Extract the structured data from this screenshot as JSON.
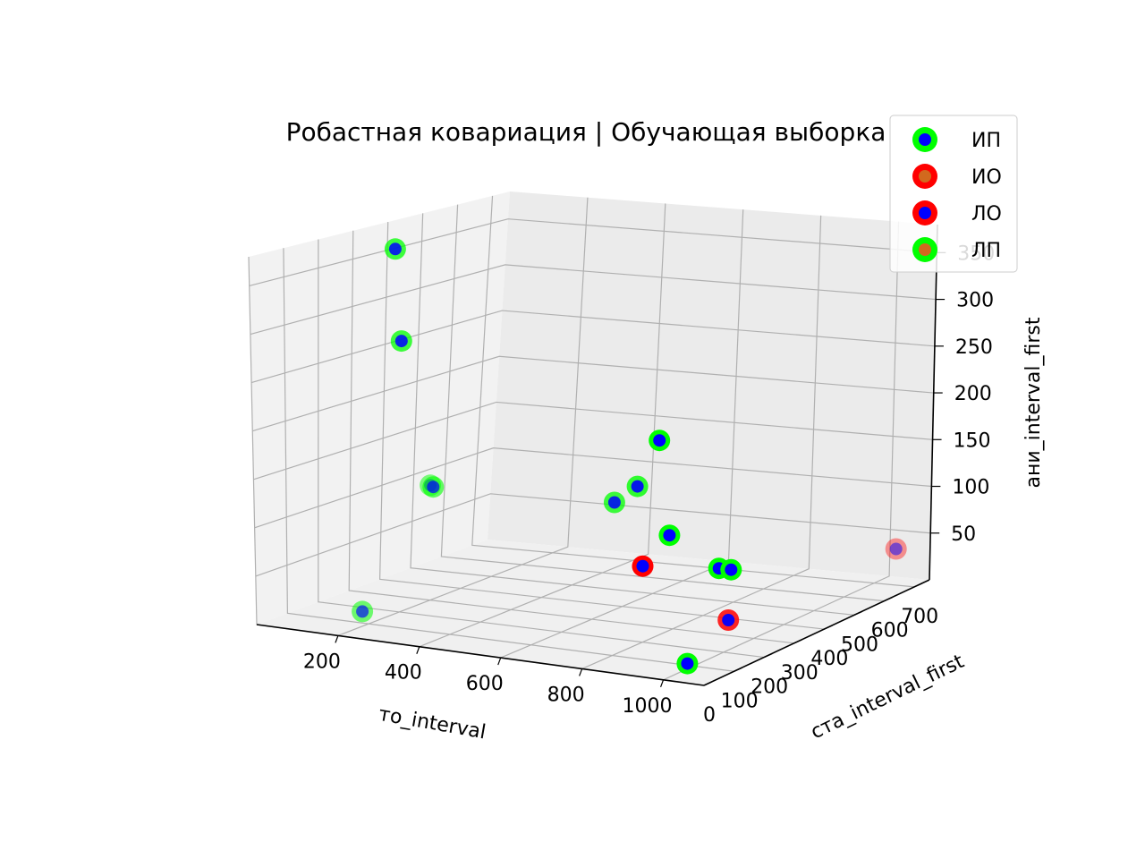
{
  "chart_data": {
    "type": "scatter",
    "projection": "3d",
    "title": "Робастная ковариация | Обучающая выборка",
    "xlabel": "то_interval",
    "ylabel": "ста_interval_first",
    "zlabel": "ани_interval_first",
    "x_ticks": [
      "200",
      "400",
      "600",
      "800",
      "1000"
    ],
    "y_ticks": [
      "0",
      "100",
      "200",
      "300",
      "400",
      "500",
      "600",
      "700"
    ],
    "z_ticks": [
      "50",
      "100",
      "150",
      "200",
      "250",
      "300",
      "350"
    ],
    "grid": true,
    "legend_position": "top-right",
    "legend": [
      {
        "label": "ИП",
        "edge": "#00ff00",
        "face": "#0000ff"
      },
      {
        "label": "ИО",
        "edge": "#ff0000",
        "face": "#d2691e"
      },
      {
        "label": "ЛО",
        "edge": "#ff0000",
        "face": "#0000ff"
      },
      {
        "label": "ЛП",
        "edge": "#00ff00",
        "face": "#d2691e"
      }
    ],
    "points": [
      {
        "class": "ИП",
        "x": 80,
        "y": 330,
        "z": 360,
        "alpha": 0.75
      },
      {
        "class": "ИП",
        "x": 140,
        "y": 280,
        "z": 270,
        "alpha": 0.75
      },
      {
        "class": "ИП",
        "x": 120,
        "y": 400,
        "z": 105,
        "alpha": 0.5
      },
      {
        "class": "ИП",
        "x": 135,
        "y": 390,
        "z": 105,
        "alpha": 0.6
      },
      {
        "class": "ИП",
        "x": 200,
        "y": 80,
        "z": 15,
        "alpha": 0.55
      },
      {
        "class": "ИП",
        "x": 500,
        "y": 640,
        "z": 140,
        "alpha": 1.0
      },
      {
        "class": "ИП",
        "x": 480,
        "y": 600,
        "z": 95,
        "alpha": 0.8
      },
      {
        "class": "ИП",
        "x": 470,
        "y": 540,
        "z": 85,
        "alpha": 0.75
      },
      {
        "class": "ИП",
        "x": 700,
        "y": 420,
        "z": 75,
        "alpha": 1.0
      },
      {
        "class": "ИП",
        "x": 960,
        "y": 240,
        "z": 75,
        "alpha": 1.0
      },
      {
        "class": "ИП",
        "x": 990,
        "y": 240,
        "z": 75,
        "alpha": 1.0
      },
      {
        "class": "ИП",
        "x": 1000,
        "y": 80,
        "z": 5,
        "alpha": 1.0
      },
      {
        "class": "ЛО",
        "x": 680,
        "y": 360,
        "z": 50,
        "alpha": 1.0
      },
      {
        "class": "ЛО",
        "x": 1050,
        "y": 150,
        "z": 40,
        "alpha": 0.85
      },
      {
        "class": "ЛО",
        "x": 1060,
        "y": 690,
        "z": 40,
        "alpha": 0.4
      }
    ]
  }
}
